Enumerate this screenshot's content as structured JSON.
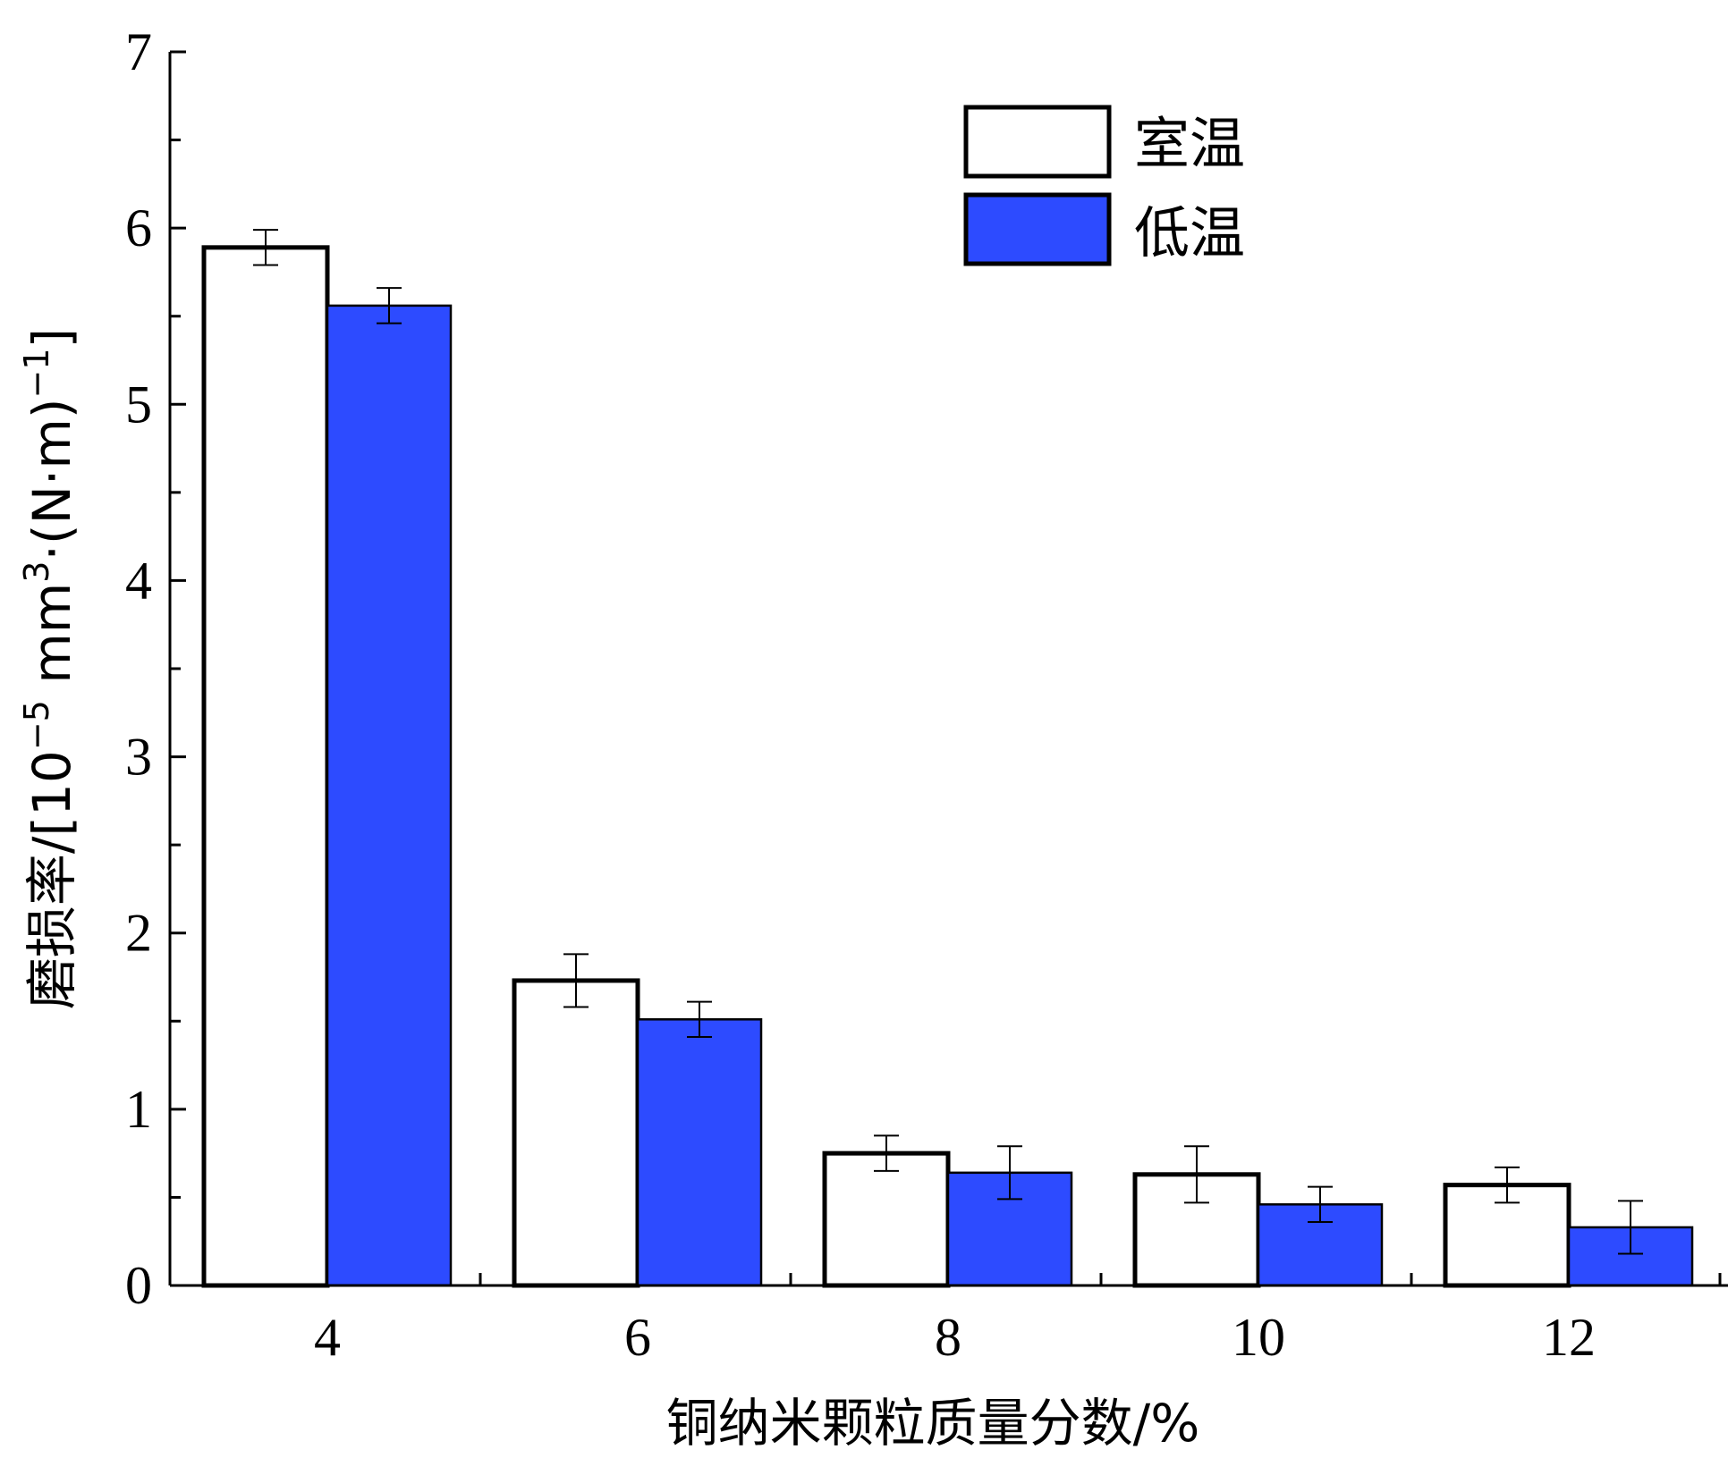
{
  "chart_data": {
    "type": "bar",
    "categories": [
      "4",
      "6",
      "8",
      "10",
      "12"
    ],
    "series": [
      {
        "name": "室温",
        "values": [
          5.89,
          1.73,
          0.75,
          0.63,
          0.57
        ],
        "errors": [
          0.1,
          0.15,
          0.1,
          0.16,
          0.1
        ],
        "color": "#ffffff"
      },
      {
        "name": "低温",
        "values": [
          5.56,
          1.51,
          0.64,
          0.46,
          0.33
        ],
        "errors": [
          0.1,
          0.1,
          0.15,
          0.1,
          0.15
        ],
        "color": "#2d4bff"
      }
    ],
    "xlabel": "铜纳米颗粒质量分数/%",
    "ylabel": {
      "prefix": "磨损率/[10",
      "exp1": "−5",
      "mid": " mm",
      "exp2": "3",
      "mid2": "·(N·m)",
      "exp3": "−1",
      "suffix": "]"
    },
    "ylim": [
      0,
      7
    ],
    "yticks": [
      "0",
      "1",
      "2",
      "3",
      "4",
      "5",
      "6",
      "7"
    ],
    "grid": false,
    "legend_position": "top-right"
  }
}
